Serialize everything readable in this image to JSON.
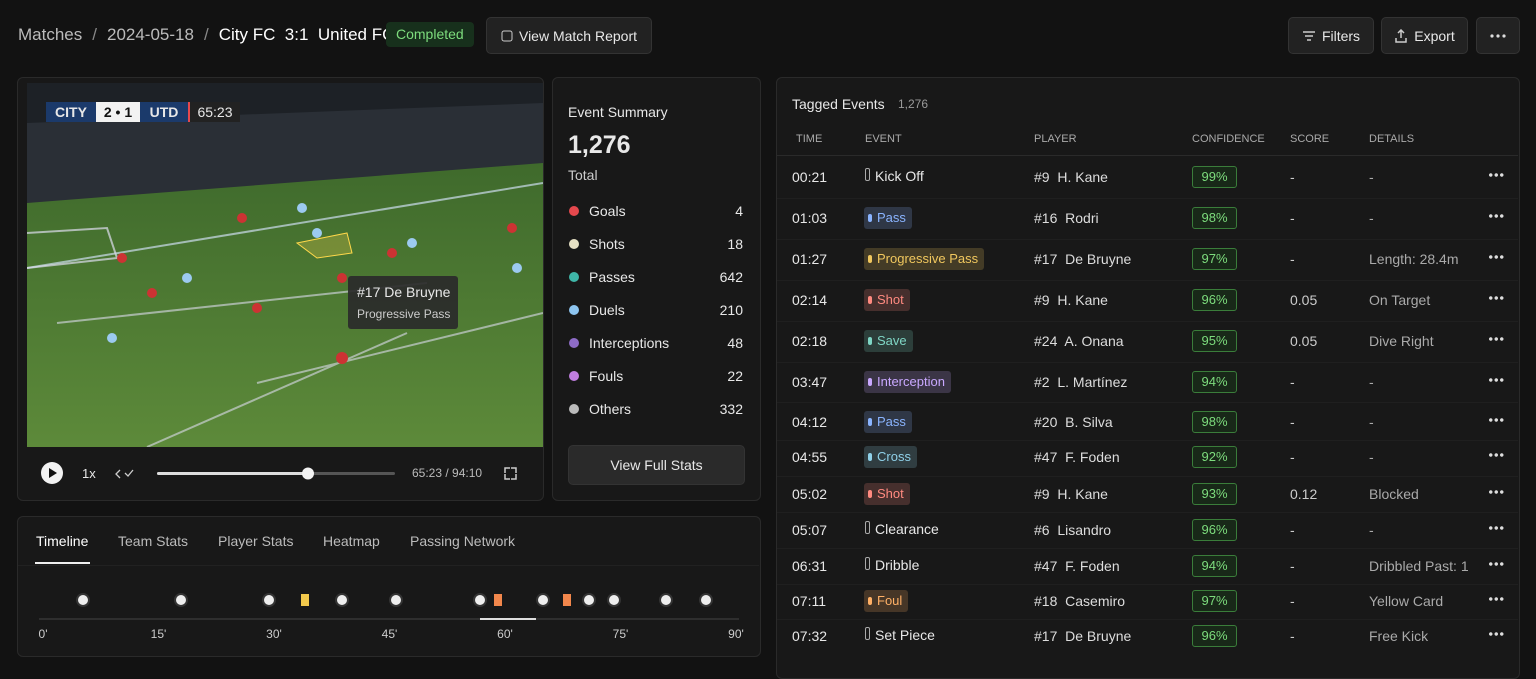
{
  "breadcrumb": {
    "items": [
      "Matches",
      "2024-05-18",
      "City FC  3:1  United FC"
    ],
    "separator": "/"
  },
  "status": "Completed",
  "actions": {
    "report": "View Match Report",
    "filters": "Filters",
    "export": "Export"
  },
  "video": {
    "home": "CITY",
    "score": "2 • 1",
    "away": "UTD",
    "clock": "65:23",
    "tooltip": {
      "player": "#17 De Bruyne",
      "event": "Progressive Pass"
    },
    "speed": "1x",
    "time": "65:23 / 94:10"
  },
  "summary": {
    "title": "Event Summary",
    "total": "1,276",
    "total_label": "Total",
    "items": [
      {
        "label": "Goals",
        "value": 4,
        "color": "#e5484d"
      },
      {
        "label": "Shots",
        "value": 18,
        "color": "#e6e1c4"
      },
      {
        "label": "Passes",
        "value": 642,
        "color": "#3fb6a8"
      },
      {
        "label": "Duels",
        "value": 210,
        "color": "#8ec5f0"
      },
      {
        "label": "Interceptions",
        "value": 48,
        "color": "#8e6cc7"
      },
      {
        "label": "Fouls",
        "value": 22,
        "color": "#c07ee0"
      },
      {
        "label": "Others",
        "value": 332,
        "color": "#bbbbbb"
      }
    ],
    "button": "View Full Stats"
  },
  "tabs": {
    "items": [
      "Timeline",
      "Team Stats",
      "Player Stats",
      "Heatmap",
      "Passing Network"
    ],
    "ticks": [
      "0'",
      "15'",
      "30'",
      "45'",
      "60'",
      "75'",
      "90'"
    ]
  },
  "events": {
    "title": "Tagged Events",
    "count": "1,276",
    "columns": [
      "TIME",
      "EVENT",
      "PLAYER",
      "CONFIDENCE",
      "SCORE",
      "DETAILS"
    ],
    "rows": [
      {
        "time": "00:21",
        "event": "Kick Off",
        "player": "#9  H. Kane",
        "confidence": "99%",
        "score": "-",
        "details": "-"
      },
      {
        "time": "01:03",
        "event": "Pass",
        "color": "#8ab4ff",
        "player": "#16  Rodri",
        "confidence": "98%",
        "score": "-",
        "details": "-"
      },
      {
        "time": "01:27",
        "event": "Progressive Pass",
        "color": "#f0c75e",
        "player": "#17  De Bruyne",
        "confidence": "97%",
        "score": "-",
        "details": "Length: 28.4m"
      },
      {
        "time": "02:14",
        "event": "Shot",
        "color": "#ff8a80",
        "player": "#9  H. Kane",
        "confidence": "96%",
        "score": "0.05",
        "details": "On Target"
      },
      {
        "time": "02:18",
        "event": "Save",
        "color": "#7fd6c5",
        "player": "#24  A. Onana",
        "confidence": "95%",
        "score": "0.05",
        "details": "Dive Right"
      },
      {
        "time": "03:47",
        "event": "Interception",
        "color": "#c9a8ff",
        "player": "#2  L. Martínez",
        "confidence": "94%",
        "score": "-",
        "details": "-"
      },
      {
        "time": "04:12",
        "event": "Pass",
        "color": "#8ab4ff",
        "player": "#20  B. Silva",
        "confidence": "98%",
        "score": "-",
        "details": "-"
      },
      {
        "time": "04:55",
        "event": "Cross",
        "color": "#8fd0e8",
        "player": "#47  F. Foden",
        "confidence": "92%",
        "score": "-",
        "details": "-"
      },
      {
        "time": "05:02",
        "event": "Shot",
        "color": "#ff8a80",
        "player": "#9  H. Kane",
        "confidence": "93%",
        "score": "0.12",
        "details": "Blocked"
      },
      {
        "time": "05:07",
        "event": "Clearance",
        "player": "#6  Lisandro",
        "confidence": "96%",
        "score": "-",
        "details": "-"
      },
      {
        "time": "06:31",
        "event": "Dribble",
        "player": "#47  F. Foden",
        "confidence": "94%",
        "score": "-",
        "details": "Dribbled Past: 1"
      },
      {
        "time": "07:11",
        "event": "Foul",
        "color": "#ffb066",
        "player": "#18  Casemiro",
        "confidence": "97%",
        "score": "-",
        "details": "Yellow Card"
      },
      {
        "time": "07:32",
        "event": "Set Piece",
        "player": "#17  De Bruyne",
        "confidence": "96%",
        "score": "-",
        "details": "Free Kick"
      }
    ]
  }
}
